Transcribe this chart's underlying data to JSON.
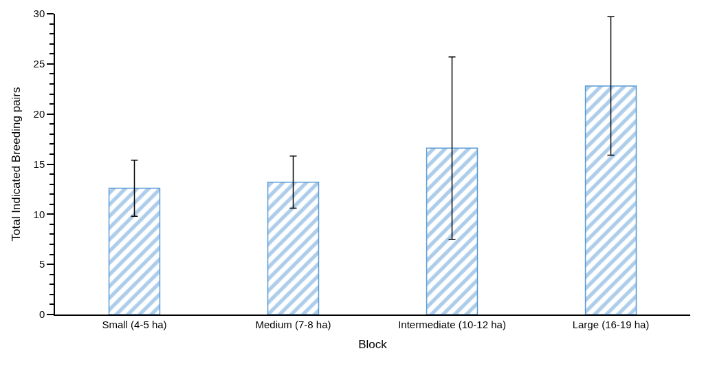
{
  "chart_data": {
    "type": "bar",
    "xlabel": "Block",
    "ylabel": "Total Indicated Breeding pairs",
    "categories": [
      "Small (4-5 ha)",
      "Medium (7-8 ha)",
      "Intermediate (10-12 ha)",
      "Large (16-19 ha)"
    ],
    "values": [
      12.6,
      13.2,
      16.6,
      22.8
    ],
    "errors": [
      2.8,
      2.6,
      9.1,
      6.9
    ],
    "color": "#5b9bd5",
    "ylim": [
      0,
      30
    ],
    "yticks": [
      0,
      5,
      10,
      15,
      20,
      25,
      30
    ]
  }
}
